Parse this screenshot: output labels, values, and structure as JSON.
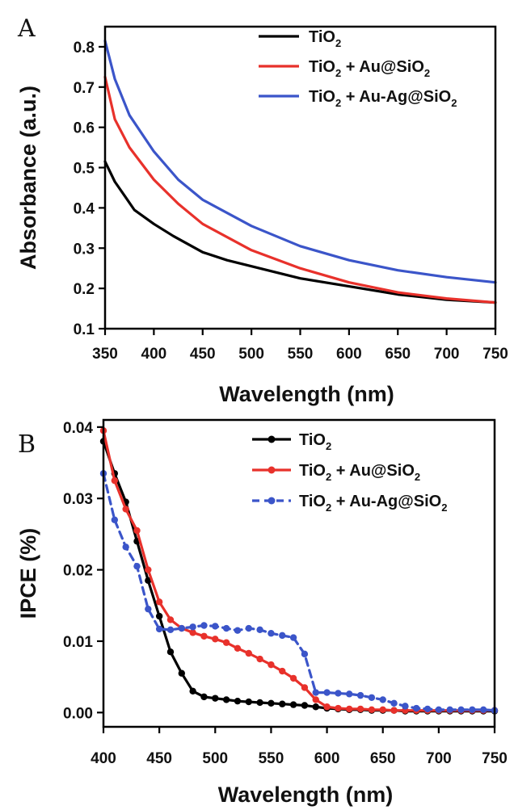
{
  "chart_data": [
    {
      "panel_label": "A",
      "type": "line",
      "xlabel": "Wavelength (nm)",
      "ylabel": "Absorbance (a.u.)",
      "xlim": [
        350,
        750
      ],
      "ylim": [
        0.1,
        0.85
      ],
      "xticks": [
        350,
        400,
        450,
        500,
        550,
        600,
        650,
        700,
        750
      ],
      "yticks": [
        0.1,
        0.2,
        0.3,
        0.4,
        0.5,
        0.6,
        0.7,
        0.8
      ],
      "ytick_labels": [
        "0.1",
        "0.2",
        "0.3",
        "0.4",
        "0.5",
        "0.6",
        "0.7",
        "0.8"
      ],
      "legend_position": "top-right",
      "grid": false,
      "series": [
        {
          "name": "TiO",
          "name_sub": "2",
          "name_rest": "",
          "color": "#000000",
          "marker": "none",
          "dashed": false,
          "x": [
            350,
            360,
            370,
            380,
            400,
            420,
            450,
            475,
            500,
            550,
            600,
            650,
            700,
            750
          ],
          "y": [
            0.515,
            0.465,
            0.43,
            0.395,
            0.36,
            0.33,
            0.29,
            0.27,
            0.255,
            0.225,
            0.205,
            0.185,
            0.172,
            0.165
          ]
        },
        {
          "name": "TiO",
          "name_sub": "2",
          "name_rest": " + Au@SiO",
          "name_sub2": "2",
          "color": "#e8312b",
          "marker": "none",
          "dashed": false,
          "x": [
            350,
            360,
            375,
            400,
            425,
            450,
            500,
            550,
            600,
            650,
            700,
            750
          ],
          "y": [
            0.725,
            0.62,
            0.55,
            0.47,
            0.41,
            0.36,
            0.295,
            0.25,
            0.215,
            0.19,
            0.175,
            0.165
          ]
        },
        {
          "name": "TiO",
          "name_sub": "2",
          "name_rest": " + Au-Ag@SiO",
          "name_sub2": "2",
          "color": "#3b55c9",
          "marker": "none",
          "dashed": false,
          "x": [
            350,
            360,
            375,
            400,
            425,
            450,
            500,
            550,
            600,
            650,
            700,
            750
          ],
          "y": [
            0.815,
            0.72,
            0.63,
            0.54,
            0.47,
            0.42,
            0.355,
            0.305,
            0.27,
            0.245,
            0.228,
            0.215
          ]
        }
      ]
    },
    {
      "panel_label": "B",
      "type": "line",
      "xlabel": "Wavelength (nm)",
      "ylabel": "IPCE (%)",
      "xlim": [
        400,
        750
      ],
      "ylim": [
        -0.002,
        0.041
      ],
      "xticks": [
        400,
        450,
        500,
        550,
        600,
        650,
        700,
        750
      ],
      "yticks": [
        0.0,
        0.01,
        0.02,
        0.03,
        0.04
      ],
      "ytick_labels": [
        "0.00",
        "0.01",
        "0.02",
        "0.03",
        "0.04"
      ],
      "legend_position": "top-right",
      "grid": false,
      "series": [
        {
          "name": "TiO",
          "name_sub": "2",
          "name_rest": "",
          "color": "#000000",
          "marker": "circle",
          "dashed": false,
          "x": [
            400,
            410,
            420,
            430,
            440,
            450,
            460,
            470,
            480,
            490,
            500,
            510,
            520,
            530,
            540,
            550,
            560,
            570,
            580,
            590,
            600,
            610,
            620,
            630,
            640,
            650,
            660,
            670,
            680,
            690,
            700,
            710,
            720,
            730,
            740,
            750
          ],
          "y": [
            0.038,
            0.0335,
            0.0295,
            0.024,
            0.0185,
            0.0135,
            0.0085,
            0.0055,
            0.003,
            0.0022,
            0.002,
            0.0018,
            0.0016,
            0.0015,
            0.0014,
            0.0013,
            0.0012,
            0.0011,
            0.001,
            0.0008,
            0.0006,
            0.0005,
            0.0004,
            0.0004,
            0.0003,
            0.0003,
            0.0003,
            0.0002,
            0.0002,
            0.0002,
            0.0002,
            0.0002,
            0.0002,
            0.0002,
            0.0002,
            0.0002
          ]
        },
        {
          "name": "TiO",
          "name_sub": "2",
          "name_rest": " + Au@SiO",
          "name_sub2": "2",
          "color": "#e8312b",
          "marker": "circle",
          "dashed": false,
          "x": [
            400,
            410,
            420,
            430,
            440,
            450,
            460,
            470,
            480,
            490,
            500,
            510,
            520,
            530,
            540,
            550,
            560,
            570,
            580,
            590,
            600,
            610,
            620,
            630,
            640,
            650,
            660,
            670,
            680,
            690,
            700,
            710,
            720,
            730,
            740,
            750
          ],
          "y": [
            0.0395,
            0.0325,
            0.0285,
            0.0255,
            0.02,
            0.0155,
            0.013,
            0.0118,
            0.0112,
            0.0107,
            0.0103,
            0.0098,
            0.009,
            0.0083,
            0.0075,
            0.0067,
            0.0058,
            0.0048,
            0.0035,
            0.0018,
            0.0008,
            0.0006,
            0.0005,
            0.0005,
            0.0004,
            0.0004,
            0.0003,
            0.0003,
            0.0003,
            0.0003,
            0.0003,
            0.0003,
            0.0003,
            0.0003,
            0.0003,
            0.0003
          ]
        },
        {
          "name": "TiO",
          "name_sub": "2",
          "name_rest": " + Au-Ag@SiO",
          "name_sub2": "2",
          "color": "#3b55c9",
          "marker": "circle",
          "dashed": true,
          "x": [
            400,
            410,
            420,
            430,
            440,
            450,
            460,
            470,
            480,
            490,
            500,
            510,
            520,
            530,
            540,
            550,
            560,
            570,
            580,
            590,
            600,
            610,
            620,
            630,
            640,
            650,
            660,
            670,
            680,
            690,
            700,
            710,
            720,
            730,
            740,
            750
          ],
          "y": [
            0.0335,
            0.027,
            0.0232,
            0.0205,
            0.0145,
            0.0117,
            0.0116,
            0.0118,
            0.012,
            0.0122,
            0.0121,
            0.0118,
            0.0115,
            0.0118,
            0.0116,
            0.0111,
            0.0108,
            0.0105,
            0.0082,
            0.0028,
            0.0028,
            0.0027,
            0.0026,
            0.0024,
            0.0021,
            0.0018,
            0.0013,
            0.0009,
            0.0006,
            0.0005,
            0.0004,
            0.0004,
            0.0004,
            0.0004,
            0.0004,
            0.0003
          ]
        }
      ]
    }
  ]
}
